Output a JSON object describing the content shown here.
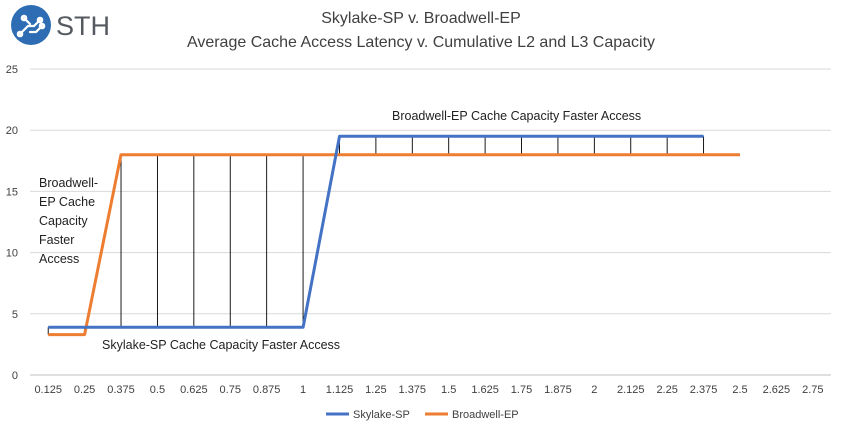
{
  "logo": {
    "text": "STH"
  },
  "chart_data": {
    "type": "line",
    "title": "Skylake-SP v. Broadwell-EP",
    "subtitle": "Average Cache Access Latency v. Cumulative L2 and L3 Capacity",
    "xlabel": "",
    "ylabel": "",
    "categories": [
      "0.125",
      "0.25",
      "0.375",
      "0.5",
      "0.625",
      "0.75",
      "0.875",
      "1",
      "1.125",
      "1.25",
      "1.375",
      "1.5",
      "1.625",
      "1.75",
      "1.875",
      "2",
      "2.125",
      "2.25",
      "2.375",
      "2.5",
      "2.625",
      "2.75"
    ],
    "ylim": [
      0,
      25
    ],
    "yticks": [
      "0",
      "5",
      "10",
      "15",
      "20",
      "25"
    ],
    "grid": true,
    "legend_position": "bottom",
    "series": [
      {
        "name": "Skylake-SP",
        "color": "#4472C4",
        "values": [
          3.9,
          3.9,
          3.9,
          3.9,
          3.9,
          3.9,
          3.9,
          3.9,
          19.5,
          19.5,
          19.5,
          19.5,
          19.5,
          19.5,
          19.5,
          19.5,
          19.5,
          19.5,
          19.5,
          null,
          null,
          null
        ]
      },
      {
        "name": "Broadwell-EP",
        "color": "#ED7D31",
        "values": [
          3.3,
          3.3,
          18,
          18,
          18,
          18,
          18,
          18,
          18,
          18,
          18,
          18,
          18,
          18,
          18,
          18,
          18,
          18,
          18,
          18,
          null,
          null
        ]
      }
    ],
    "annotations": [
      {
        "text": "Broadwell-EP Cache Capacity Faster Access"
      },
      {
        "text": [
          "Broadwell-",
          "EP Cache",
          "Capacity",
          "Faster",
          "Access"
        ]
      },
      {
        "text": "Skylake-SP Cache Capacity Faster Access"
      }
    ]
  }
}
